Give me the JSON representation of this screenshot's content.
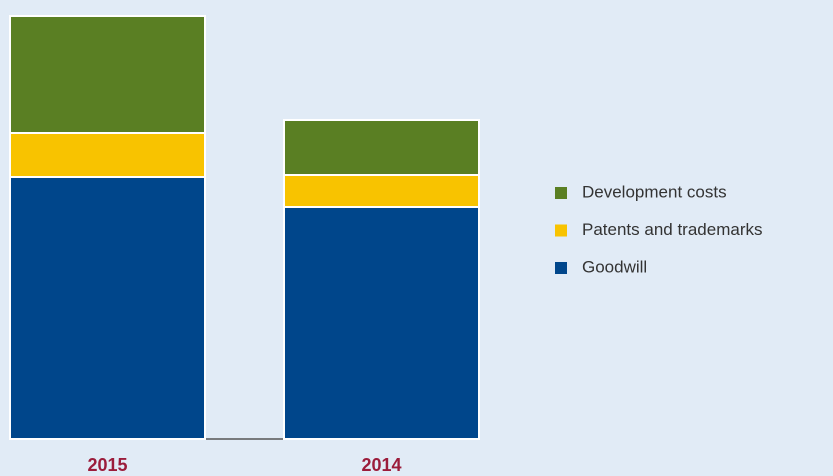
{
  "chart_data": {
    "type": "stacked_bar",
    "categories": [
      "2015",
      "2014"
    ],
    "series": [
      {
        "name": "Goodwill",
        "color": "#00468b",
        "values": [
          262,
          232
        ]
      },
      {
        "name": "Patents and trademarks",
        "color": "#f8c300",
        "values": [
          44,
          32
        ]
      },
      {
        "name": "Development costs",
        "color": "#5a7f23",
        "values": [
          117,
          55
        ]
      }
    ],
    "ylim": [
      0,
      430
    ]
  }
}
